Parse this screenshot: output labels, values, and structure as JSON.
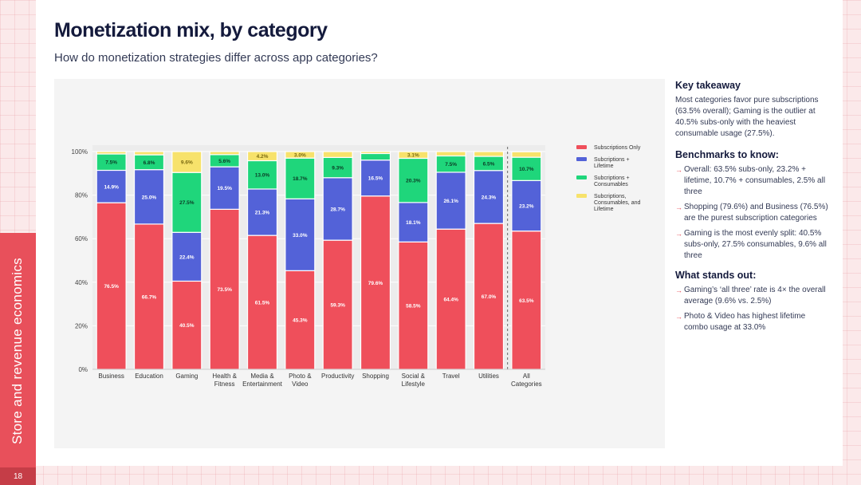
{
  "page": {
    "title": "Monetization mix, by category",
    "subtitle": "How do monetization strategies differ across app categories?",
    "side_label": "Store and revenue economics",
    "page_number": "18"
  },
  "colors": {
    "accent": "#e8505b",
    "subs_only": "#ef4f5b",
    "subs_lifetime": "#5362d8",
    "subs_consumables": "#1fd67b",
    "all_three": "#f7e26b"
  },
  "chart_data": {
    "type": "bar",
    "stacked": true,
    "categories": [
      [
        "Business"
      ],
      [
        "Education"
      ],
      [
        "Gaming"
      ],
      [
        "Health &",
        "Fitness"
      ],
      [
        "Media &",
        "Entertainment"
      ],
      [
        "Photo &",
        "Video"
      ],
      [
        "Productivity"
      ],
      [
        "Shopping"
      ],
      [
        "Social &",
        "Lifestyle"
      ],
      [
        "Travel"
      ],
      [
        "Utilities"
      ],
      [
        "All",
        "Categories"
      ]
    ],
    "series": [
      {
        "name": "Subscriptions Only",
        "legend_lines": [
          "Subscriptions Only"
        ],
        "color": "#ef4f5b",
        "values": [
          76.5,
          66.7,
          40.5,
          73.5,
          61.5,
          45.3,
          59.3,
          79.6,
          58.5,
          64.4,
          67.0,
          63.5
        ],
        "labels": [
          "76.5%",
          "66.7%",
          "40.5%",
          "73.5%",
          "61.5%",
          "45.3%",
          "59.3%",
          "79.6%",
          "58.5%",
          "64.4%",
          "67.0%",
          "63.5%"
        ]
      },
      {
        "name": "Subcriptions + Lifetime",
        "legend_lines": [
          "Subcriptions +",
          "Lifetime"
        ],
        "color": "#5362d8",
        "values": [
          14.9,
          25.0,
          22.4,
          19.5,
          21.3,
          33.0,
          28.7,
          16.5,
          18.1,
          26.1,
          24.3,
          23.2
        ],
        "labels": [
          "14.9%",
          "25.0%",
          "22.4%",
          "19.5%",
          "21.3%",
          "33.0%",
          "28.7%",
          "16.5%",
          "18.1%",
          "26.1%",
          "24.3%",
          "23.2%"
        ]
      },
      {
        "name": "Subcriptions + Consumables",
        "legend_lines": [
          "Subcriptions +",
          "Consumables"
        ],
        "color": "#1fd67b",
        "values": [
          7.5,
          6.8,
          27.5,
          5.6,
          13.0,
          18.7,
          9.3,
          3.0,
          20.3,
          7.5,
          6.5,
          10.7
        ],
        "labels": [
          "7.5%",
          "6.8%",
          "27.5%",
          "5.6%",
          "13.0%",
          "18.7%",
          "9.3%",
          "",
          "20.3%",
          "7.5%",
          "6.5%",
          "10.7%"
        ]
      },
      {
        "name": "Subcriptions, Consumables, and Lifetime",
        "legend_lines": [
          "Subcriptions,",
          "Consumables, and",
          "Lifetime"
        ],
        "color": "#f7e26b",
        "values": [
          1.1,
          1.5,
          9.6,
          1.4,
          4.2,
          3.0,
          2.7,
          0.9,
          3.1,
          2.0,
          2.2,
          2.5
        ],
        "labels": [
          "",
          "",
          "9.6%",
          "",
          "4.2%",
          "3.0%",
          "",
          "",
          "3.1%",
          "",
          "",
          ""
        ]
      }
    ],
    "yticks": [
      "0%",
      "20%",
      "40%",
      "60%",
      "80%",
      "100%"
    ],
    "ylim": [
      0,
      100
    ],
    "legend_position": "right",
    "annotation": "dashed separator before All Categories"
  },
  "takeaway": {
    "heading": "Key takeaway",
    "text": "Most categories favor pure subscriptions (63.5% overall); Gaming is the outlier at 40.5% subs-only with the heaviest consumable usage (27.5%)."
  },
  "benchmarks": {
    "heading": "Benchmarks to know:",
    "items": [
      "Overall: 63.5% subs-only, 23.2% + lifetime, 10.7% + consumables, 2.5% all three",
      "Shopping (79.6%) and Business (76.5%) are the purest subscription categories",
      "Gaming is the most evenly split: 40.5% subs-only, 27.5% consumables, 9.6% all three"
    ]
  },
  "stands_out": {
    "heading": "What stands out:",
    "items": [
      "Gaming’s ‘all three’ rate is 4× the overall average (9.6% vs. 2.5%)",
      "Photo & Video has highest lifetime combo usage at 33.0%"
    ]
  },
  "icons": {
    "bullet": "arrow-right-icon"
  }
}
